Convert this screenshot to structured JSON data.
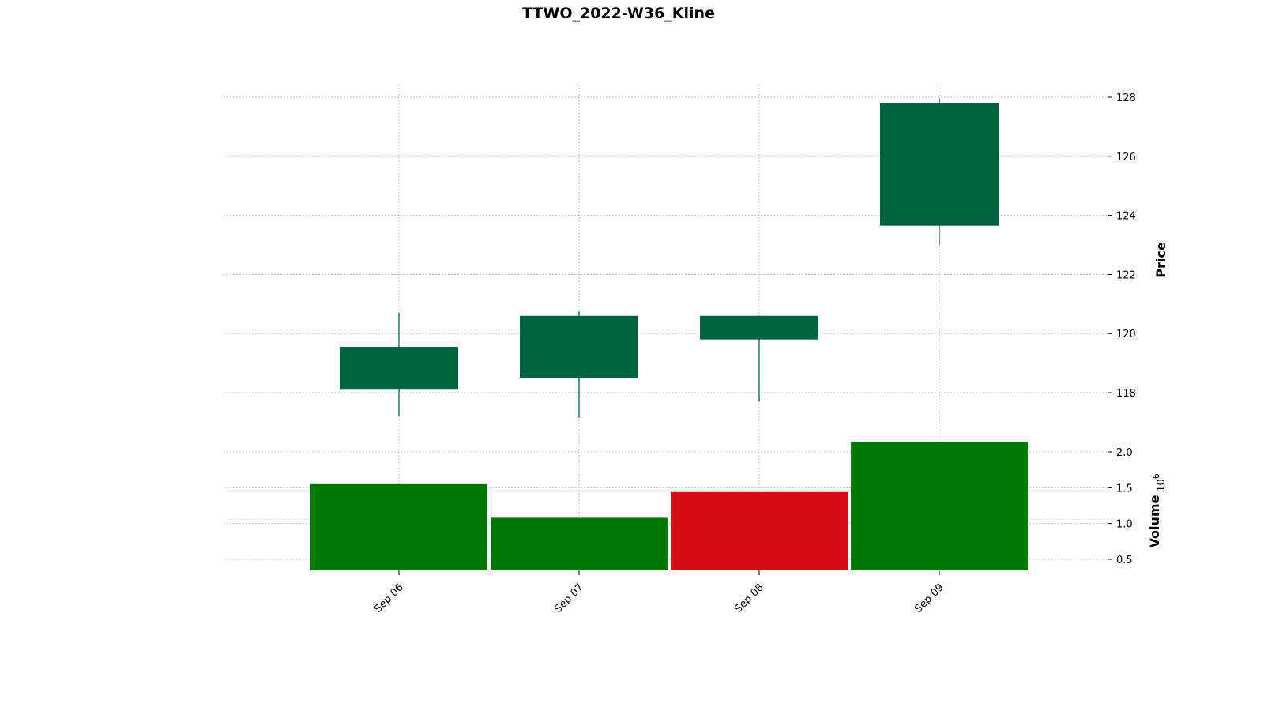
{
  "chart_data": {
    "type": "candlestick",
    "title": "TTWO_2022-W36_Kline",
    "categories": [
      "Sep 06",
      "Sep 07",
      "Sep 08",
      "Sep 09"
    ],
    "ohlc": [
      {
        "date": "Sep 06",
        "open": 118.1,
        "high": 120.7,
        "low": 117.2,
        "close": 119.55
      },
      {
        "date": "Sep 07",
        "open": 118.5,
        "high": 120.75,
        "low": 117.15,
        "close": 120.6
      },
      {
        "date": "Sep 08",
        "open": 119.8,
        "high": 120.6,
        "low": 117.7,
        "close": 120.6
      },
      {
        "date": "Sep 09",
        "open": 123.65,
        "high": 127.95,
        "low": 123.0,
        "close": 127.8
      }
    ],
    "volume": {
      "label": "Volume",
      "multiplier": "10",
      "exponent": "6",
      "values": [
        1.55,
        1.08,
        1.44,
        2.14
      ],
      "direction": [
        "up",
        "up",
        "down",
        "up"
      ],
      "ylim": [
        0.35,
        2.15
      ],
      "yticks": [
        "0.5",
        "1.0",
        "1.5",
        "2.0"
      ]
    },
    "price": {
      "label": "Price",
      "ylim": [
        116.6,
        128.5
      ],
      "yticks": [
        "118",
        "120",
        "122",
        "124",
        "126",
        "128"
      ]
    },
    "colors": {
      "candle_up": "#006340",
      "volume_up": "#007700",
      "volume_down": "#d60e18",
      "grid": "#b0b0b0"
    },
    "grid": true
  }
}
